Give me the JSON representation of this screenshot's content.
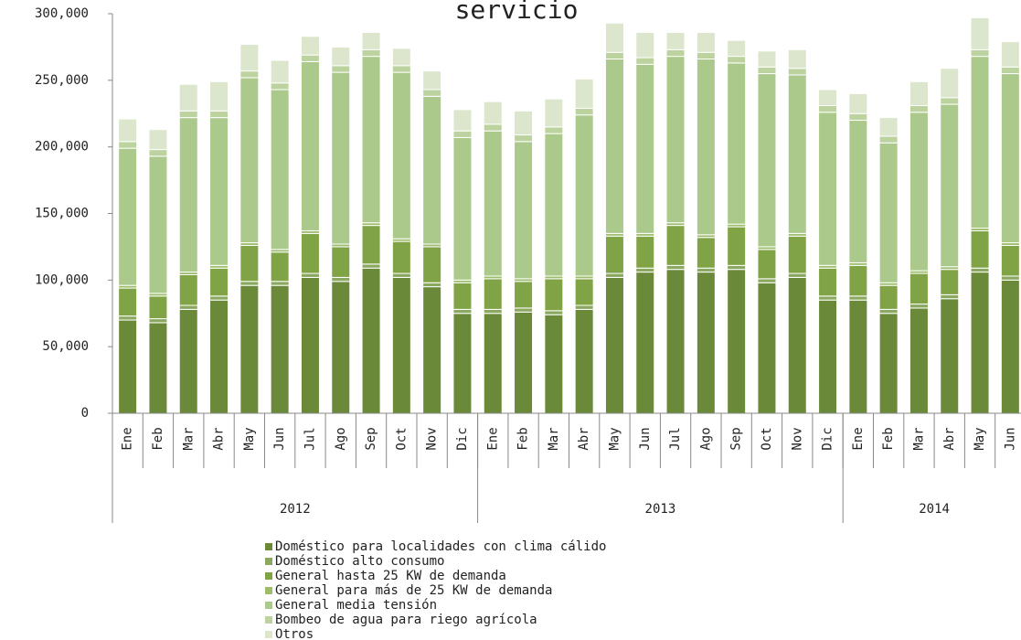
{
  "chart_data": {
    "type": "stacked-bar",
    "title": "servicio",
    "categories": [
      "Ene",
      "Feb",
      "Mar",
      "Abr",
      "May",
      "Jun",
      "Jul",
      "Ago",
      "Sep",
      "Oct",
      "Nov",
      "Dic",
      "Ene",
      "Feb",
      "Mar",
      "Abr",
      "May",
      "Jun",
      "Jul",
      "Ago",
      "Sep",
      "Oct",
      "Nov",
      "Dic",
      "Ene",
      "Feb",
      "Mar",
      "Abr",
      "May",
      "Jun"
    ],
    "category_groups": [
      {
        "label": "2012",
        "count": 12
      },
      {
        "label": "2013",
        "count": 12
      },
      {
        "label": "2014",
        "count": 6
      }
    ],
    "ylim": [
      0,
      300000
    ],
    "yticks": [
      0,
      {
        "value": 50000,
        "label": "50,000"
      },
      {
        "value": 100000,
        "label": "100,000"
      },
      {
        "value": 150000,
        "label": "150,000"
      },
      {
        "value": 200000,
        "label": "200,000"
      },
      {
        "value": 250000,
        "label": "250,000"
      },
      {
        "value": 300000,
        "label": "300,000"
      }
    ],
    "grid": false,
    "series": [
      {
        "name": "Doméstico para localidades con clima cálido",
        "color": "#6a8a3a",
        "values": [
          70000,
          68000,
          78000,
          85000,
          96000,
          96000,
          102000,
          99000,
          109000,
          102000,
          95000,
          75000,
          75000,
          76000,
          74000,
          78000,
          102000,
          106000,
          108000,
          106000,
          108000,
          98000,
          102000,
          85000,
          85000,
          75000,
          79000,
          86000,
          106000,
          100000
        ]
      },
      {
        "name": "Doméstico alto consumo",
        "color": "#8aa860",
        "values": [
          3000,
          3000,
          3000,
          3000,
          3000,
          3000,
          3000,
          3000,
          3000,
          3000,
          3000,
          3000,
          3000,
          3000,
          3000,
          3000,
          3000,
          3000,
          3000,
          3000,
          3000,
          3000,
          3000,
          3000,
          3000,
          3000,
          3000,
          3000,
          3000,
          3000
        ]
      },
      {
        "name": "General hasta 25 KW de demanda",
        "color": "#80a345",
        "values": [
          21000,
          17000,
          23000,
          21000,
          27000,
          22000,
          30000,
          23000,
          29000,
          24000,
          27000,
          20000,
          23000,
          20000,
          24000,
          20000,
          28000,
          24000,
          30000,
          23000,
          29000,
          22000,
          28000,
          21000,
          23000,
          18000,
          23000,
          19000,
          28000,
          23000
        ]
      },
      {
        "name": "General para más de 25 KW de demanda",
        "color": "#9dbd6c",
        "values": [
          2000,
          2000,
          2000,
          2000,
          2000,
          2000,
          2000,
          2000,
          2000,
          2000,
          2000,
          2000,
          2000,
          2000,
          2000,
          2000,
          2000,
          2000,
          2000,
          2000,
          2000,
          2000,
          2000,
          2000,
          2000,
          2000,
          2000,
          2000,
          2000,
          2000
        ]
      },
      {
        "name": "General media tensión",
        "color": "#abc98a",
        "values": [
          103000,
          103000,
          116000,
          111000,
          124000,
          120000,
          127000,
          129000,
          125000,
          125000,
          111000,
          107000,
          109000,
          103000,
          107000,
          121000,
          131000,
          127000,
          125000,
          132000,
          121000,
          130000,
          119000,
          115000,
          107000,
          105000,
          119000,
          122000,
          129000,
          127000
        ]
      },
      {
        "name": "Bombeo de agua para riego agrícola",
        "color": "#bcd3a0",
        "values": [
          5000,
          5000,
          5000,
          5000,
          5000,
          5000,
          5000,
          5000,
          5000,
          5000,
          5000,
          5000,
          5000,
          5000,
          5000,
          5000,
          5000,
          5000,
          5000,
          5000,
          5000,
          5000,
          5000,
          5000,
          5000,
          5000,
          5000,
          5000,
          5000,
          5000
        ]
      },
      {
        "name": "Otros",
        "color": "#dbe6cc",
        "values": [
          17000,
          15000,
          20000,
          22000,
          20000,
          17000,
          14000,
          14000,
          13000,
          13000,
          14000,
          16000,
          17000,
          18000,
          21000,
          22000,
          22000,
          19000,
          13000,
          15000,
          12000,
          12000,
          14000,
          12000,
          15000,
          14000,
          18000,
          22000,
          24000,
          19000
        ]
      }
    ]
  }
}
